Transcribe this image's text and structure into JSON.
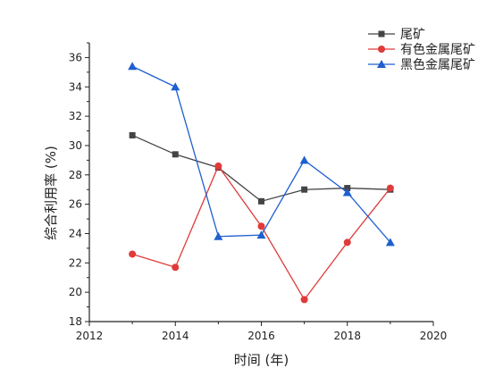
{
  "chart_data": {
    "type": "line",
    "title": "",
    "xlabel": "时间 (年)",
    "ylabel": "综合利用率 (%)",
    "xlim": [
      2012,
      2020
    ],
    "ylim": [
      18,
      37
    ],
    "xticks": [
      2012,
      2014,
      2016,
      2018,
      2020
    ],
    "yticks": [
      18,
      20,
      22,
      24,
      26,
      28,
      30,
      32,
      34,
      36
    ],
    "grid": false,
    "legend_position": "top-right",
    "x": [
      2013,
      2014,
      2015,
      2016,
      2017,
      2018,
      2019
    ],
    "series": [
      {
        "name": "尾矿",
        "color": "#444444",
        "marker": "square",
        "values": [
          30.7,
          29.4,
          28.5,
          26.2,
          27.0,
          27.1,
          27.0
        ]
      },
      {
        "name": "有色金属尾矿",
        "color": "#e03a3a",
        "marker": "circle",
        "values": [
          22.6,
          21.7,
          28.6,
          24.5,
          19.5,
          23.4,
          27.1
        ]
      },
      {
        "name": "黑色金属尾矿",
        "color": "#1f5fd0",
        "marker": "triangle",
        "values": [
          35.4,
          34.0,
          23.8,
          23.9,
          29.0,
          26.8,
          23.4
        ]
      }
    ]
  }
}
